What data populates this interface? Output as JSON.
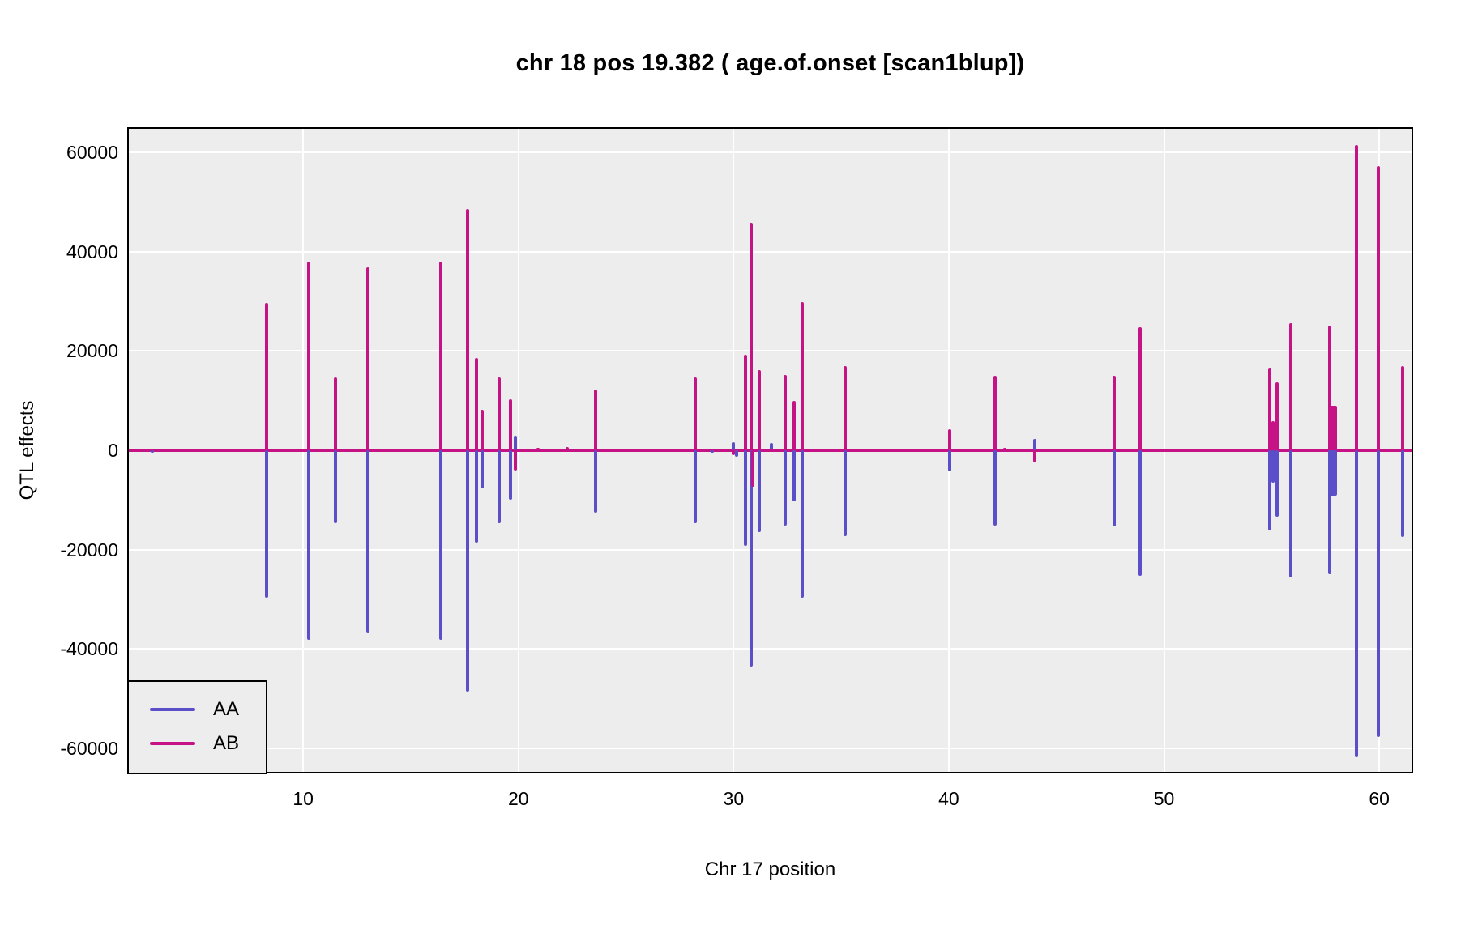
{
  "title": "chr 18 pos 19.382 ( age.of.onset  [scan1blup])",
  "colors": {
    "AA": "#5B4EC9",
    "AB": "#C51385",
    "plot_bg": "#EDEDED",
    "grid": "#FFFFFF",
    "border": "#000000",
    "text": "#000000"
  },
  "chart_data": {
    "type": "line",
    "title": "chr 18 pos 19.382 ( age.of.onset  [scan1blup])",
    "xlabel": "Chr 17 position",
    "ylabel": "QTL effects",
    "xlim": [
      1.9,
      61.5
    ],
    "ylim": [
      -64700,
      64700
    ],
    "x_ticks": [
      10,
      20,
      30,
      40,
      50,
      60
    ],
    "y_ticks": [
      -60000,
      -40000,
      -20000,
      0,
      20000,
      40000,
      60000
    ],
    "grid": true,
    "baseline": 0,
    "legend_position": "bottom-left",
    "legend": [
      {
        "label": "AA",
        "color": "#5B4EC9"
      },
      {
        "label": "AB",
        "color": "#C51385"
      }
    ],
    "series": [
      {
        "name": "AA",
        "color": "#5B4EC9",
        "spikes": [
          [
            3.0,
            -300
          ],
          [
            8.3,
            -29700
          ],
          [
            10.25,
            -38200
          ],
          [
            11.5,
            -14600
          ],
          [
            13.0,
            -36600
          ],
          [
            16.4,
            -38100
          ],
          [
            17.65,
            -48600
          ],
          [
            18.05,
            -18600
          ],
          [
            18.3,
            -7600
          ],
          [
            19.1,
            -14700
          ],
          [
            19.65,
            -9900
          ],
          [
            19.85,
            2900
          ],
          [
            23.6,
            -12500
          ],
          [
            28.2,
            -14600
          ],
          [
            29.0,
            -500
          ],
          [
            30.0,
            1600
          ],
          [
            30.15,
            -1300
          ],
          [
            30.55,
            -19200
          ],
          [
            30.8,
            -43500
          ],
          [
            31.2,
            -16400
          ],
          [
            31.75,
            1500
          ],
          [
            32.4,
            -15200
          ],
          [
            32.8,
            -10300
          ],
          [
            33.2,
            -29700
          ],
          [
            35.2,
            -17300
          ],
          [
            40.05,
            -4300
          ],
          [
            42.15,
            -15200
          ],
          [
            44.0,
            2300
          ],
          [
            47.7,
            -15400
          ],
          [
            48.9,
            -25200
          ],
          [
            54.9,
            -16100
          ],
          [
            55.05,
            -6500
          ],
          [
            55.25,
            -13400
          ],
          [
            55.9,
            -25600
          ],
          [
            57.7,
            -24900
          ],
          [
            57.85,
            -9100,
            9
          ],
          [
            58.95,
            -61800
          ],
          [
            59.95,
            -57700
          ],
          [
            61.1,
            -17400
          ]
        ]
      },
      {
        "name": "AB",
        "color": "#C51385",
        "spikes": [
          [
            8.3,
            29700
          ],
          [
            10.25,
            38000
          ],
          [
            11.5,
            14600
          ],
          [
            13.0,
            36800
          ],
          [
            16.4,
            37900
          ],
          [
            17.65,
            48500
          ],
          [
            18.05,
            18600
          ],
          [
            18.3,
            8100
          ],
          [
            19.1,
            14600
          ],
          [
            19.65,
            10200
          ],
          [
            19.85,
            -4100
          ],
          [
            20.9,
            500
          ],
          [
            22.25,
            600
          ],
          [
            23.6,
            12300
          ],
          [
            28.2,
            14600
          ],
          [
            30.0,
            -900
          ],
          [
            30.55,
            19300
          ],
          [
            30.8,
            45800
          ],
          [
            30.9,
            -7300
          ],
          [
            31.2,
            16100
          ],
          [
            31.75,
            400
          ],
          [
            32.4,
            15100
          ],
          [
            32.8,
            10000
          ],
          [
            33.2,
            29800
          ],
          [
            35.2,
            16900
          ],
          [
            40.05,
            4200
          ],
          [
            42.15,
            15000
          ],
          [
            42.6,
            500
          ],
          [
            44.0,
            -2400
          ],
          [
            47.7,
            15000
          ],
          [
            48.9,
            24800
          ],
          [
            54.9,
            16600
          ],
          [
            55.05,
            5900
          ],
          [
            55.25,
            13700
          ],
          [
            55.9,
            25600
          ],
          [
            57.7,
            25100
          ],
          [
            57.85,
            9000,
            9
          ],
          [
            58.95,
            61500
          ],
          [
            59.95,
            57200
          ],
          [
            61.1,
            16900
          ]
        ]
      }
    ]
  }
}
